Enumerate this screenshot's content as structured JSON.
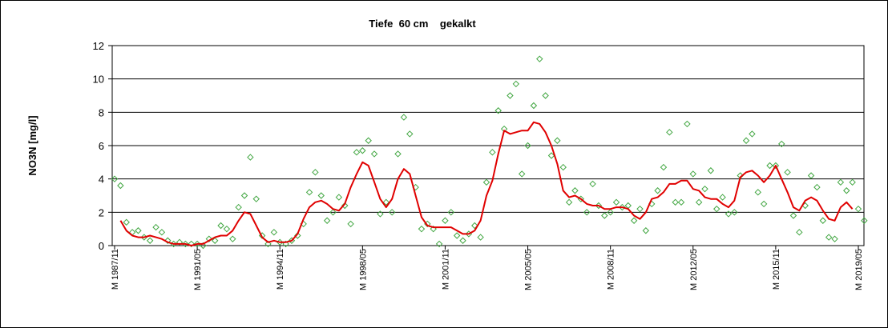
{
  "chart_data": {
    "type": "line",
    "title": "Tiefe  60 cm    gekalkt",
    "y_label": "NO3N [mg/l]",
    "categories": [
      "M 1987/11",
      null,
      null,
      null,
      null,
      null,
      null,
      null,
      null,
      null,
      null,
      null,
      null,
      null,
      "M 1991/05",
      null,
      null,
      null,
      null,
      null,
      null,
      null,
      null,
      null,
      null,
      null,
      null,
      null,
      "M 1994/11",
      null,
      null,
      null,
      null,
      null,
      null,
      null,
      null,
      null,
      null,
      null,
      null,
      null,
      "M 1998/05",
      null,
      null,
      null,
      null,
      null,
      null,
      null,
      null,
      null,
      null,
      null,
      null,
      null,
      "M 2001/11",
      null,
      null,
      null,
      null,
      null,
      null,
      null,
      null,
      null,
      null,
      null,
      null,
      null,
      "M 2005/05",
      null,
      null,
      null,
      null,
      null,
      null,
      null,
      null,
      null,
      null,
      null,
      null,
      null,
      "M 2008/11",
      null,
      null,
      null,
      null,
      null,
      null,
      null,
      null,
      null,
      null,
      null,
      null,
      null,
      "M 2012/05",
      null,
      null,
      null,
      null,
      null,
      null,
      null,
      null,
      null,
      null,
      null,
      null,
      null,
      "M 2015/11",
      null,
      null,
      null,
      null,
      null,
      null,
      null,
      null,
      null,
      null,
      null,
      null,
      null,
      "M 2019/05",
      null
    ],
    "series": [
      {
        "type": "scatter",
        "color": "#3fa53f",
        "values": [
          4.0,
          3.6,
          1.4,
          0.8,
          0.9,
          0.5,
          0.3,
          1.1,
          0.8,
          0.3,
          0.1,
          0.2,
          0.1,
          0.1,
          0.1,
          0.0,
          0.4,
          0.3,
          1.2,
          1.0,
          0.4,
          2.3,
          3.0,
          5.3,
          2.8,
          0.6,
          0.1,
          0.8,
          0.2,
          0.1,
          0.3,
          0.6,
          1.3,
          3.2,
          4.4,
          3.0,
          1.5,
          2.0,
          2.9,
          2.4,
          1.3,
          5.6,
          5.7,
          6.3,
          5.5,
          1.9,
          2.6,
          2.0,
          5.5,
          7.7,
          6.7,
          3.5,
          1.0,
          1.3,
          1.0,
          0.1,
          1.5,
          2.0,
          0.6,
          0.3,
          0.7,
          1.2,
          0.5,
          3.8,
          5.6,
          8.1,
          7.0,
          9.0,
          9.7,
          4.3,
          6.0,
          8.4,
          11.2,
          9.0,
          5.4,
          6.3,
          4.7,
          2.6,
          3.3,
          2.8,
          2.0,
          3.7,
          2.4,
          1.8,
          2.0,
          2.6,
          2.3,
          2.4,
          1.5,
          2.2,
          0.9,
          2.5,
          3.3,
          4.7,
          6.8,
          2.6,
          2.6,
          7.3,
          4.3,
          2.6,
          3.4,
          4.5,
          2.2,
          2.9,
          1.9,
          2.0,
          4.2,
          6.3,
          6.7,
          3.2,
          2.5,
          4.8,
          4.8,
          6.1,
          4.4,
          1.8,
          0.8,
          2.4,
          4.2,
          3.5,
          1.5,
          0.5,
          0.4,
          3.8,
          3.3,
          3.8,
          2.2,
          1.5
        ]
      },
      {
        "type": "line",
        "color": "#e00000",
        "values": [
          null,
          1.5,
          0.9,
          0.6,
          0.5,
          0.5,
          0.6,
          0.5,
          0.4,
          0.2,
          0.1,
          0.1,
          0.1,
          0.0,
          0.1,
          0.1,
          0.3,
          0.5,
          0.6,
          0.6,
          0.9,
          1.5,
          2.0,
          1.9,
          1.2,
          0.5,
          0.2,
          0.3,
          0.2,
          0.2,
          0.3,
          0.7,
          1.6,
          2.3,
          2.6,
          2.7,
          2.5,
          2.2,
          2.1,
          2.5,
          3.5,
          4.3,
          5.0,
          4.8,
          3.8,
          2.8,
          2.3,
          2.8,
          4.0,
          4.6,
          4.3,
          3.0,
          1.7,
          1.2,
          1.1,
          1.1,
          1.1,
          1.1,
          0.9,
          0.7,
          0.7,
          0.9,
          1.5,
          3.0,
          3.9,
          5.5,
          6.9,
          6.7,
          6.8,
          6.9,
          6.9,
          7.4,
          7.3,
          6.8,
          6.0,
          4.9,
          3.3,
          2.9,
          3.0,
          2.8,
          2.5,
          2.4,
          2.4,
          2.2,
          2.2,
          2.3,
          2.3,
          2.2,
          1.8,
          1.6,
          2.0,
          2.8,
          2.9,
          3.2,
          3.7,
          3.7,
          3.9,
          3.9,
          3.4,
          3.3,
          2.9,
          2.8,
          2.8,
          2.5,
          2.3,
          2.7,
          4.1,
          4.4,
          4.5,
          4.2,
          3.8,
          4.2,
          4.8,
          4.0,
          3.2,
          2.3,
          2.1,
          2.7,
          2.9,
          2.7,
          2.1,
          1.6,
          1.5,
          2.3,
          2.6,
          2.2,
          null,
          null
        ]
      }
    ],
    "ylim": [
      0,
      12
    ],
    "yticks": [
      0,
      2,
      4,
      6,
      8,
      10,
      12
    ],
    "grid": true
  }
}
